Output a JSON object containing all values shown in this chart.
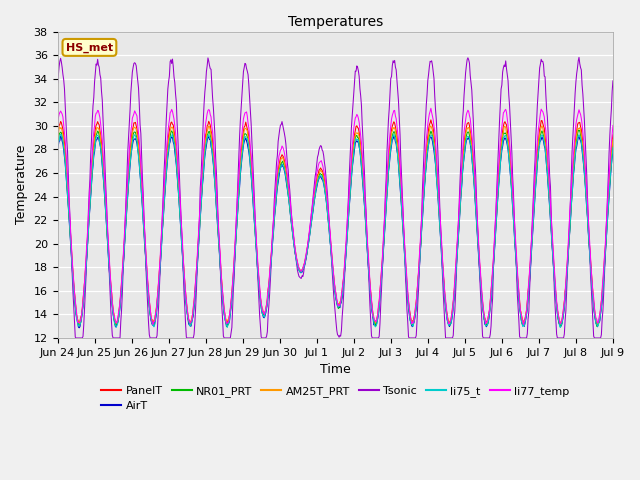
{
  "title": "Temperatures",
  "xlabel": "Time",
  "ylabel": "Temperature",
  "ylim": [
    12,
    38
  ],
  "annotation": "HS_met",
  "series": [
    "PanelT",
    "AirT",
    "NR01_PRT",
    "AM25T_PRT",
    "Tsonic",
    "li75_t",
    "li77_temp"
  ],
  "colors": {
    "PanelT": "#ff0000",
    "AirT": "#0000cc",
    "NR01_PRT": "#00bb00",
    "AM25T_PRT": "#ff9900",
    "Tsonic": "#9900cc",
    "li75_t": "#00cccc",
    "li77_temp": "#ff00ff"
  },
  "x_tick_labels": [
    "Jun 24",
    "Jun 25",
    "Jun 26",
    "Jun 27",
    "Jun 28",
    "Jun 29",
    "Jun 30",
    "Jul 1",
    "Jul 2",
    "Jul 3",
    "Jul 4",
    "Jul 5",
    "Jul 6",
    "Jul 7",
    "Jul 8",
    "Jul 9"
  ],
  "fig_facecolor": "#f0f0f0",
  "axes_facecolor": "#e8e8e8",
  "title_fontsize": 10,
  "axis_label_fontsize": 9,
  "tick_fontsize": 8,
  "legend_fontsize": 8,
  "total_days": 15
}
